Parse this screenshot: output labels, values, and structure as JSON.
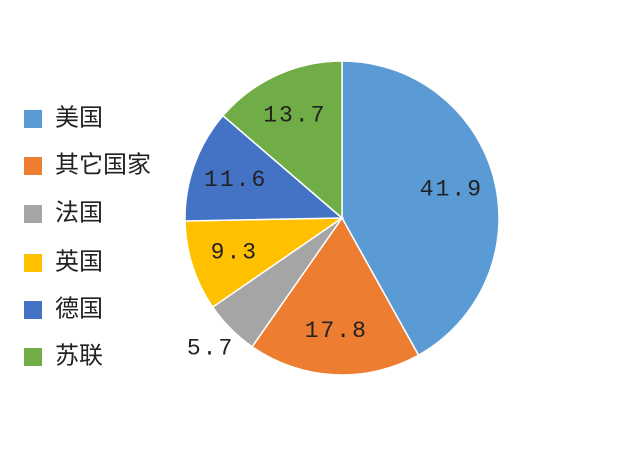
{
  "chart_data": {
    "type": "pie",
    "categories": [
      "美国",
      "其它国家",
      "法国",
      "英国",
      "德国",
      "苏联"
    ],
    "values": [
      41.9,
      17.8,
      5.7,
      9.3,
      11.6,
      13.7
    ],
    "colors": [
      "#5b9bd5",
      "#ed7d31",
      "#a5a5a5",
      "#ffc000",
      "#4472c4",
      "#70ad47"
    ],
    "legend": "left"
  }
}
